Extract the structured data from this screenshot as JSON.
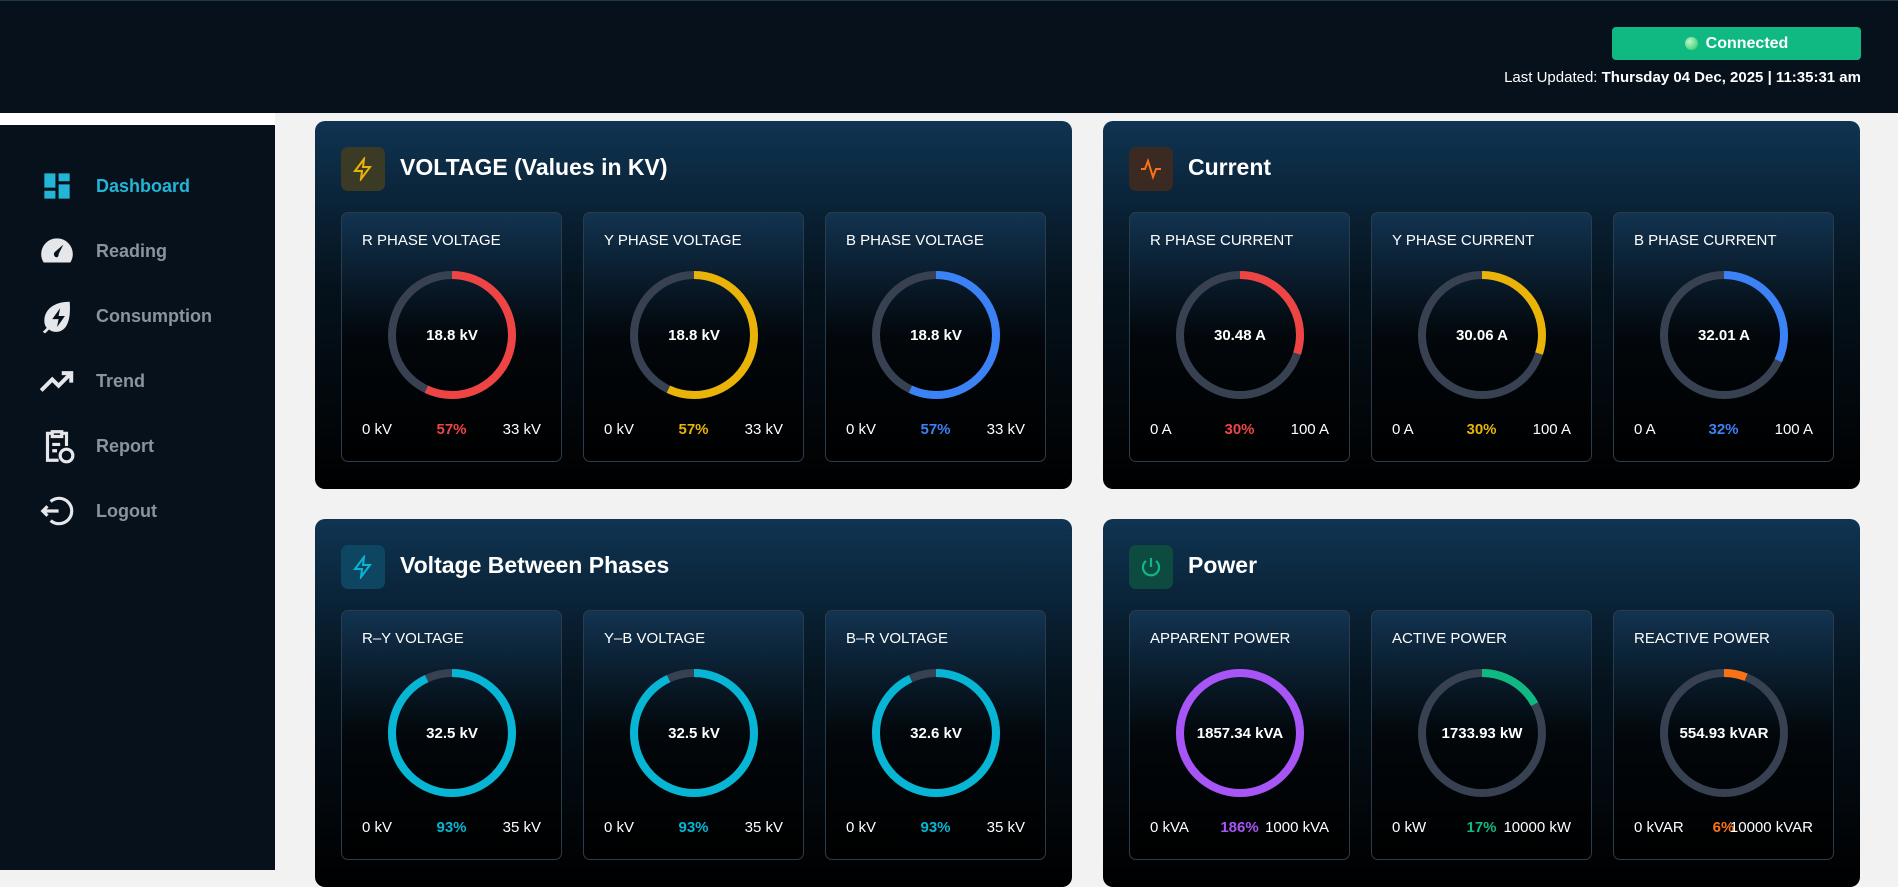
{
  "header": {
    "status": "Connected",
    "last_updated_label": "Last Updated:",
    "last_updated": "Thursday 04 Dec, 2025 | 11:35:31 am"
  },
  "sidebar": {
    "items": [
      "Dashboard",
      "Reading",
      "Consumption",
      "Trend",
      "Report",
      "Logout"
    ]
  },
  "panels": [
    {
      "title": "VOLTAGE (Values in KV)",
      "cards": [
        {
          "label": "R PHASE VOLTAGE",
          "value": "18.8 kV",
          "min": "0 kV",
          "max": "33 kV",
          "percent": 57,
          "percent_label": "57%",
          "color": "#ef4444"
        },
        {
          "label": "Y PHASE VOLTAGE",
          "value": "18.8 kV",
          "min": "0 kV",
          "max": "33 kV",
          "percent": 57,
          "percent_label": "57%",
          "color": "#eab308"
        },
        {
          "label": "B PHASE VOLTAGE",
          "value": "18.8 kV",
          "min": "0 kV",
          "max": "33 kV",
          "percent": 57,
          "percent_label": "57%",
          "color": "#3b82f6"
        }
      ]
    },
    {
      "title": "Current",
      "cards": [
        {
          "label": "R PHASE CURRENT",
          "value": "30.48 A",
          "min": "0 A",
          "max": "100 A",
          "percent": 30,
          "percent_label": "30%",
          "color": "#ef4444"
        },
        {
          "label": "Y PHASE CURRENT",
          "value": "30.06 A",
          "min": "0 A",
          "max": "100 A",
          "percent": 30,
          "percent_label": "30%",
          "color": "#eab308"
        },
        {
          "label": "B PHASE CURRENT",
          "value": "32.01 A",
          "min": "0 A",
          "max": "100 A",
          "percent": 32,
          "percent_label": "32%",
          "color": "#3b82f6"
        }
      ]
    },
    {
      "title": "Voltage Between Phases",
      "cards": [
        {
          "label": "R–Y VOLTAGE",
          "value": "32.5 kV",
          "min": "0 kV",
          "max": "35 kV",
          "percent": 93,
          "percent_label": "93%",
          "color": "#06b6d4"
        },
        {
          "label": "Y–B VOLTAGE",
          "value": "32.5 kV",
          "min": "0 kV",
          "max": "35 kV",
          "percent": 93,
          "percent_label": "93%",
          "color": "#06b6d4"
        },
        {
          "label": "B–R VOLTAGE",
          "value": "32.6 kV",
          "min": "0 kV",
          "max": "35 kV",
          "percent": 93,
          "percent_label": "93%",
          "color": "#06b6d4"
        }
      ]
    },
    {
      "title": "Power",
      "cards": [
        {
          "label": "APPARENT POWER",
          "value": "1857.34 kVA",
          "min": "0 kVA",
          "max": "1000 kVA",
          "percent": 186,
          "percent_label": "186%",
          "color": "#a855f7"
        },
        {
          "label": "ACTIVE POWER",
          "value": "1733.93 kW",
          "min": "0 kW",
          "max": "10000 kW",
          "percent": 17,
          "percent_label": "17%",
          "color": "#10b981"
        },
        {
          "label": "REACTIVE POWER",
          "value": "554.93 kVAR",
          "min": "0 kVAR",
          "max": "10000 kVAR",
          "percent": 6,
          "percent_label": "6%",
          "color": "#f97316"
        }
      ]
    }
  ]
}
